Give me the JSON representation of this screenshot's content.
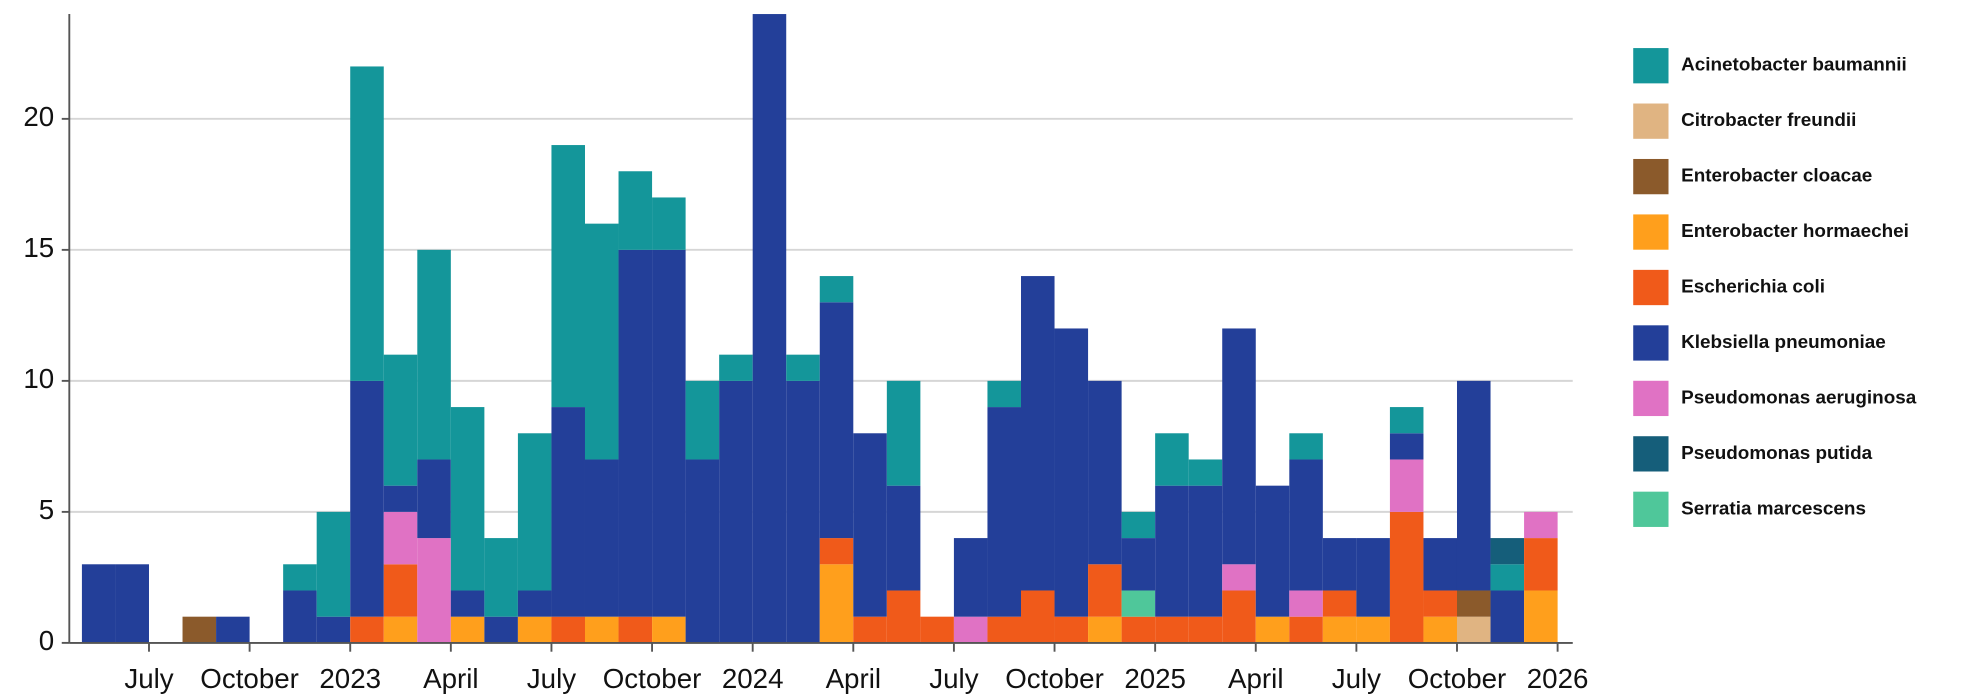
{
  "chart_data": {
    "type": "stacked-bar",
    "x": [
      "2022-05",
      "2022-06",
      "2022-07",
      "2022-08",
      "2022-09",
      "2022-10",
      "2022-11",
      "2022-12",
      "2023-01",
      "2023-02",
      "2023-03",
      "2023-04",
      "2023-05",
      "2023-06",
      "2023-07",
      "2023-08",
      "2023-09",
      "2023-10",
      "2023-11",
      "2023-12",
      "2024-01",
      "2024-02",
      "2024-03",
      "2024-04",
      "2024-05",
      "2024-06",
      "2024-07",
      "2024-08",
      "2024-09",
      "2024-10",
      "2024-11",
      "2024-12",
      "2025-01",
      "2025-02",
      "2025-03",
      "2025-04",
      "2025-05",
      "2025-06",
      "2025-07",
      "2025-08",
      "2025-09",
      "2025-10",
      "2025-11",
      "2025-12"
    ],
    "xlim": [
      "2022-05",
      "2026-01"
    ],
    "xticks": [
      {
        "value": "2022-07",
        "label": "July"
      },
      {
        "value": "2022-10",
        "label": "October"
      },
      {
        "value": "2023-01",
        "label": "2023"
      },
      {
        "value": "2023-04",
        "label": "April"
      },
      {
        "value": "2023-07",
        "label": "July"
      },
      {
        "value": "2023-10",
        "label": "October"
      },
      {
        "value": "2024-01",
        "label": "2024"
      },
      {
        "value": "2024-04",
        "label": "April"
      },
      {
        "value": "2024-07",
        "label": "July"
      },
      {
        "value": "2024-10",
        "label": "October"
      },
      {
        "value": "2025-01",
        "label": "2025"
      },
      {
        "value": "2025-04",
        "label": "April"
      },
      {
        "value": "2025-07",
        "label": "July"
      },
      {
        "value": "2025-10",
        "label": "October"
      },
      {
        "value": "2026-01",
        "label": "2026"
      }
    ],
    "ylim": [
      0,
      24
    ],
    "yticks": [
      0,
      5,
      10,
      15,
      20
    ],
    "grid": true,
    "legend": "right",
    "series": [
      {
        "name": "Acinetobacter baumannii",
        "color": "#14969a",
        "values": [
          0,
          0,
          0,
          0,
          0,
          0,
          1,
          4,
          12,
          5,
          8,
          7,
          3,
          6,
          10,
          9,
          3,
          2,
          3,
          1,
          0,
          1,
          1,
          0,
          4,
          0,
          0,
          1,
          0,
          0,
          0,
          1,
          2,
          1,
          0,
          0,
          1,
          0,
          0,
          1,
          0,
          0,
          1,
          0
        ]
      },
      {
        "name": "Citrobacter freundii",
        "color": "#e0b482",
        "values": [
          0,
          0,
          0,
          0,
          0,
          0,
          0,
          0,
          0,
          0,
          0,
          0,
          0,
          0,
          0,
          0,
          0,
          0,
          0,
          0,
          0,
          0,
          0,
          0,
          0,
          0,
          0,
          0,
          0,
          0,
          0,
          0,
          0,
          0,
          0,
          0,
          0,
          0,
          0,
          0,
          0,
          1,
          0,
          0
        ]
      },
      {
        "name": "Enterobacter cloacae",
        "color": "#8b5a2b",
        "values": [
          0,
          0,
          0,
          1,
          0,
          0,
          0,
          0,
          0,
          0,
          0,
          0,
          0,
          0,
          0,
          0,
          0,
          0,
          0,
          0,
          0,
          0,
          0,
          0,
          0,
          0,
          0,
          0,
          0,
          0,
          0,
          0,
          0,
          0,
          0,
          0,
          0,
          0,
          0,
          0,
          0,
          1,
          0,
          0
        ]
      },
      {
        "name": "Enterobacter hormaechei",
        "color": "#ff9f1c",
        "values": [
          0,
          0,
          0,
          0,
          0,
          0,
          0,
          0,
          0,
          1,
          0,
          1,
          0,
          1,
          0,
          1,
          0,
          1,
          0,
          0,
          0,
          0,
          3,
          0,
          0,
          0,
          0,
          0,
          0,
          0,
          1,
          0,
          0,
          0,
          0,
          1,
          0,
          1,
          1,
          0,
          1,
          0,
          0,
          2
        ]
      },
      {
        "name": "Escherichia coli",
        "color": "#f05a1a",
        "values": [
          0,
          0,
          0,
          0,
          0,
          0,
          0,
          0,
          1,
          2,
          0,
          0,
          0,
          0,
          1,
          0,
          1,
          0,
          0,
          0,
          0,
          0,
          1,
          1,
          2,
          1,
          0,
          1,
          2,
          1,
          2,
          1,
          1,
          1,
          2,
          0,
          1,
          1,
          0,
          5,
          1,
          0,
          0,
          2
        ]
      },
      {
        "name": "Klebsiella pneumoniae",
        "color": "#233f99",
        "values": [
          3,
          3,
          0,
          0,
          1,
          0,
          2,
          1,
          9,
          1,
          3,
          1,
          1,
          1,
          8,
          6,
          14,
          14,
          7,
          10,
          24,
          10,
          9,
          7,
          4,
          0,
          3,
          8,
          12,
          11,
          7,
          2,
          5,
          5,
          9,
          5,
          5,
          2,
          3,
          1,
          2,
          8,
          2,
          0
        ]
      },
      {
        "name": "Pseudomonas aeruginosa",
        "color": "#e072c4",
        "values": [
          0,
          0,
          0,
          0,
          0,
          0,
          0,
          0,
          0,
          2,
          4,
          0,
          0,
          0,
          0,
          0,
          0,
          0,
          0,
          0,
          0,
          0,
          0,
          0,
          0,
          0,
          1,
          0,
          0,
          0,
          0,
          0,
          0,
          0,
          1,
          0,
          1,
          0,
          0,
          2,
          0,
          0,
          0,
          1
        ]
      },
      {
        "name": "Pseudomonas putida",
        "color": "#155e7a",
        "values": [
          0,
          0,
          0,
          0,
          0,
          0,
          0,
          0,
          0,
          0,
          0,
          0,
          0,
          0,
          0,
          0,
          0,
          0,
          0,
          0,
          0,
          0,
          0,
          0,
          0,
          0,
          0,
          0,
          0,
          0,
          0,
          0,
          0,
          0,
          0,
          0,
          0,
          0,
          0,
          0,
          0,
          0,
          1,
          0
        ]
      },
      {
        "name": "Serratia marcescens",
        "color": "#4fc79a",
        "values": [
          0,
          0,
          0,
          0,
          0,
          0,
          0,
          0,
          0,
          0,
          0,
          0,
          0,
          0,
          0,
          0,
          0,
          0,
          0,
          0,
          0,
          0,
          0,
          0,
          0,
          0,
          0,
          0,
          0,
          0,
          0,
          1,
          0,
          0,
          0,
          0,
          0,
          0,
          0,
          0,
          0,
          0,
          0,
          0
        ]
      }
    ]
  }
}
